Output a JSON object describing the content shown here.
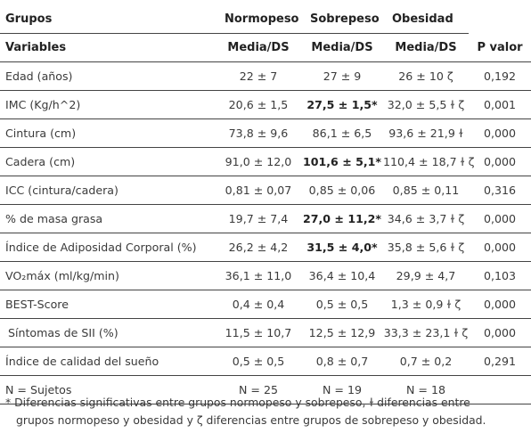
{
  "header": {
    "groups_label": "Grupos",
    "variables_label": "Variables",
    "groups": [
      "Normopeso",
      "Sobrepeso",
      "Obesidad"
    ],
    "subheader": "Media/DS",
    "pvalue_label": "P valor"
  },
  "rows": [
    {
      "label": "Edad (años)",
      "normo": "22 ± 7",
      "sobre": "27 ± 9",
      "obes": "26 ± 10 ζ",
      "p": "0,192",
      "bold": false
    },
    {
      "label": "IMC (Kg/h^2)",
      "normo": "20,6 ± 1,5",
      "sobre": "27,5 ± 1,5*",
      "obes": "32,0 ± 5,5 ɫ ζ",
      "p": "0,001",
      "bold": true
    },
    {
      "label": "Cintura (cm)",
      "normo": "73,8 ± 9,6",
      "sobre": "86,1 ± 6,5",
      "obes": "93,6 ± 21,9 ɫ",
      "p": "0,000",
      "bold": false
    },
    {
      "label": "Cadera (cm)",
      "normo": "91,0 ± 12,0",
      "sobre": "101,6 ± 5,1*",
      "obes": "110,4 ± 18,7 ɫ ζ",
      "p": "0,000",
      "bold": true
    },
    {
      "label": "ICC (cintura/cadera)",
      "normo": "0,81 ± 0,07",
      "sobre": "0,85 ± 0,06",
      "obes": "0,85 ± 0,11",
      "p": "0,316",
      "bold": false
    },
    {
      "label": "% de masa grasa",
      "normo": "19,7 ± 7,4",
      "sobre": "27,0 ± 11,2*",
      "obes": "34,6 ± 3,7 ɫ ζ",
      "p": "0,000",
      "bold": true
    },
    {
      "label": "Índice de Adiposidad Corporal (%)",
      "normo": "26,2 ± 4,2",
      "sobre": "31,5 ± 4,0*",
      "obes": "35,8 ± 5,6 ɫ ζ",
      "p": "0,000",
      "bold": true
    },
    {
      "label": "VO₂máx (ml/kg/min)",
      "normo": "36,1 ± 11,0",
      "sobre": "36,4 ± 10,4",
      "obes": "29,9 ± 4,7",
      "p": "0,103",
      "bold": false
    },
    {
      "label": "BEST-Score",
      "normo": "0,4 ± 0,4",
      "sobre": "0,5 ± 0,5",
      "obes": "1,3 ± 0,9 ɫ ζ",
      "p": "0,000",
      "bold": false
    },
    {
      "label": "Síntomas de SII (%)",
      "normo": "11,5 ± 10,7",
      "sobre": "12,5 ± 12,9",
      "obes": "33,3 ± 23,1 ɫ ζ",
      "p": "0,000",
      "bold": false,
      "indent": true
    },
    {
      "label": "Índice de calidad del sueño",
      "normo": "0,5 ± 0,5",
      "sobre": "0,8 ± 0,7",
      "obes": "0,7 ± 0,2",
      "p": "0,291",
      "bold": false
    },
    {
      "label": "N = Sujetos",
      "normo": "N = 25",
      "sobre": "N = 19",
      "obes": "N = 18",
      "p": "",
      "bold": false
    }
  ],
  "footnote": {
    "line1": "* Diferencias significativas entre grupos normopeso y sobrepeso, ɫ diferencias entre",
    "line2": "grupos normopeso y obesidad y ζ diferencias entre grupos de sobrepeso y obesidad."
  }
}
